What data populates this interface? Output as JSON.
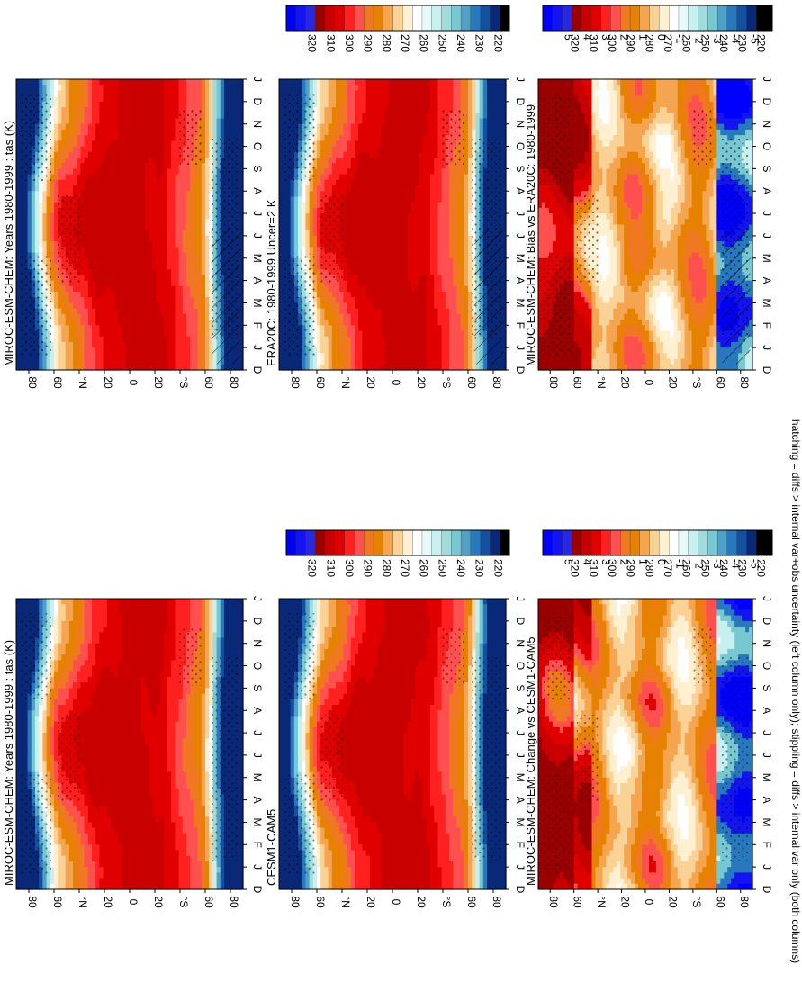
{
  "figure": {
    "footer": "hatching = diffs > internal var+obs uncertainty (left column only); stippling = diffs > internal var only (both columns)"
  },
  "chart_data": [
    {
      "id": "miroc_left",
      "type": "heatmap",
      "title": "MIROC-ESM-CHEM: Years 1980-1999 : tas (K)",
      "months": [
        "D",
        "J",
        "F",
        "M",
        "A",
        "M",
        "J",
        "J",
        "A",
        "S",
        "O",
        "N",
        "D",
        "J"
      ],
      "lat_ticks": [
        "80",
        "60",
        "°N",
        "20",
        "0",
        "20",
        "°S",
        "60",
        "80"
      ],
      "colorbar_ticks": [
        "320",
        "310",
        "300",
        "290",
        "280",
        "270",
        "260",
        "250",
        "240",
        "230",
        "220"
      ],
      "palette": "absolute",
      "field": "abs"
    },
    {
      "id": "miroc_right",
      "type": "heatmap",
      "title": "MIROC-ESM-CHEM: Years 1980-1999 : tas (K)",
      "months": [
        "D",
        "J",
        "F",
        "M",
        "A",
        "M",
        "J",
        "J",
        "A",
        "S",
        "O",
        "N",
        "D",
        "J"
      ],
      "lat_ticks": [
        "80",
        "60",
        "°N",
        "20",
        "0",
        "20",
        "°S",
        "60",
        "80"
      ],
      "colorbar_ticks": [
        "320",
        "310",
        "300",
        "290",
        "280",
        "270",
        "260",
        "250",
        "240",
        "230",
        "220"
      ],
      "palette": "absolute",
      "field": "abs"
    },
    {
      "id": "era20c",
      "type": "heatmap",
      "title": "ERA20C: 1980-1999 Uncer=2 K",
      "months": [
        "D",
        "J",
        "F",
        "M",
        "A",
        "M",
        "J",
        "J",
        "A",
        "S",
        "O",
        "N",
        "D",
        "J"
      ],
      "lat_ticks": [
        "80",
        "60",
        "°N",
        "20",
        "0",
        "20",
        "°S",
        "60",
        "80"
      ],
      "colorbar_ticks": [
        "320",
        "310",
        "300",
        "290",
        "280",
        "270",
        "260",
        "250",
        "240",
        "230",
        "220"
      ],
      "palette": "absolute",
      "field": "abs"
    },
    {
      "id": "cesm",
      "type": "heatmap",
      "title": "CESM1-CAM5",
      "months": [
        "D",
        "J",
        "F",
        "M",
        "A",
        "M",
        "J",
        "J",
        "A",
        "S",
        "O",
        "N",
        "D",
        "J"
      ],
      "lat_ticks": [
        "80",
        "60",
        "°N",
        "20",
        "0",
        "20",
        "°S",
        "60",
        "80"
      ],
      "colorbar_ticks": [
        "320",
        "310",
        "300",
        "290",
        "280",
        "270",
        "260",
        "250",
        "240",
        "230",
        "220"
      ],
      "palette": "absolute",
      "field": "abs"
    },
    {
      "id": "bias",
      "type": "heatmap",
      "title": "MIROC-ESM-CHEM: Bias vs ERA20C: 1980-1999",
      "months": [
        "D",
        "J",
        "F",
        "M",
        "A",
        "M",
        "J",
        "J",
        "A",
        "S",
        "O",
        "N",
        "D",
        "J"
      ],
      "lat_ticks": [
        "80",
        "60",
        "°N",
        "20",
        "0",
        "20",
        "°S",
        "60",
        "80"
      ],
      "colorbar_ticks": [
        "5",
        "4",
        "3",
        "2",
        "1",
        "0",
        "-1",
        "-2",
        "-3",
        "-4",
        "-5"
      ],
      "palette": "difference",
      "field": "diff"
    },
    {
      "id": "change",
      "type": "heatmap",
      "title": "MIROC-ESM-CHEM: Change vs CESM1-CAM5",
      "months": [
        "D",
        "J",
        "F",
        "M",
        "A",
        "M",
        "J",
        "J",
        "A",
        "S",
        "O",
        "N",
        "D",
        "J"
      ],
      "lat_ticks": [
        "80",
        "60",
        "°N",
        "20",
        "0",
        "20",
        "°S",
        "60",
        "80"
      ],
      "colorbar_ticks": [
        "5",
        "4",
        "3",
        "2",
        "1",
        "0",
        "-1",
        "-2",
        "-3",
        "-4",
        "-5"
      ],
      "palette": "difference",
      "field": "diff"
    }
  ],
  "colors": {
    "absolute_scale": [
      "#0000ff",
      "#1414f0",
      "#2828e0",
      "#9b0000",
      "#c80000",
      "#e10000",
      "#ff2020",
      "#ff5050",
      "#ff8c50",
      "#f07820",
      "#e68200",
      "#f5a550",
      "#fad296",
      "#fff0d2",
      "#ffffff",
      "#e6fafa",
      "#c8f0f0",
      "#a0dcdc",
      "#78c8d2",
      "#50a0c8",
      "#2878be",
      "#1450a0",
      "#0a2878",
      "#000000"
    ],
    "difference_scale": [
      "#0000ff",
      "#1414f0",
      "#2828e0",
      "#9b0000",
      "#c80000",
      "#e10000",
      "#ff2020",
      "#ff5050",
      "#ff8c50",
      "#f07820",
      "#e68200",
      "#f5a550",
      "#fad296",
      "#fff0d2",
      "#ffffff",
      "#e6fafa",
      "#c8f0f0",
      "#a0dcdc",
      "#78c8d2",
      "#50a0c8",
      "#2878be",
      "#1450a0",
      "#0a2878",
      "#000000"
    ]
  }
}
